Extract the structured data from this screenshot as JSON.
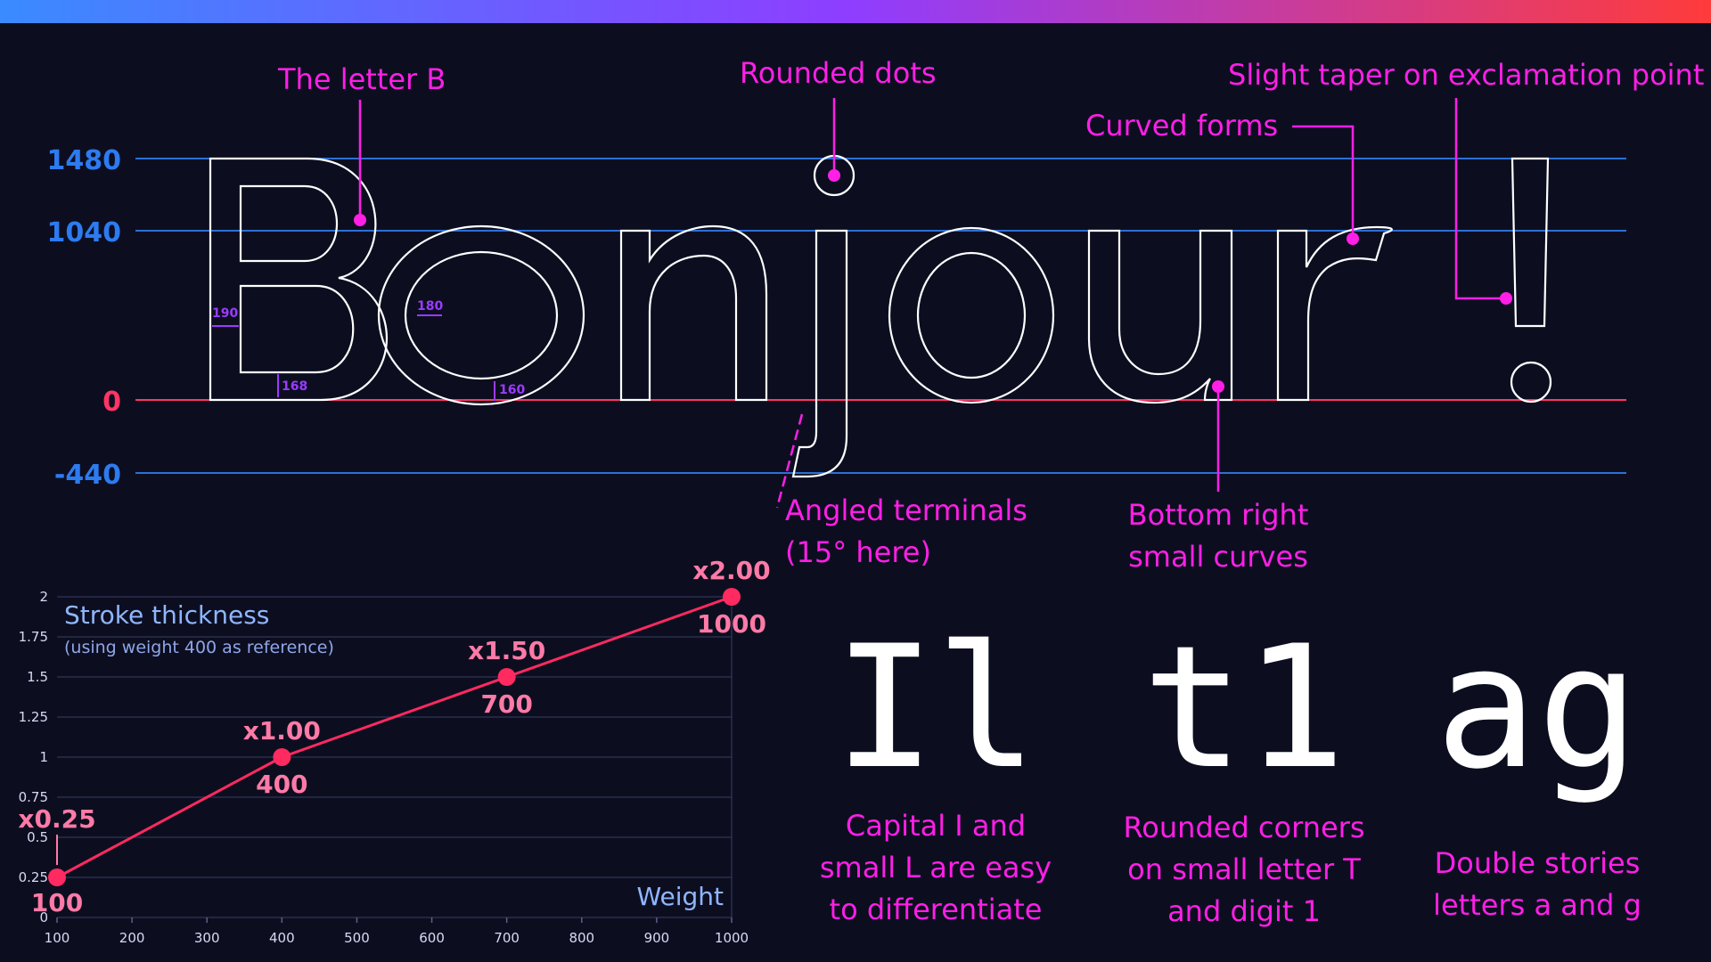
{
  "colors": {
    "background": "#0c0e20",
    "accent_magenta": "#ff1fe6",
    "guide_blue": "#2d6fd6",
    "baseline_red": "#ff3566",
    "chart_line": "#ff2a5f",
    "measure_purple": "#9b3bff",
    "top_gradient": [
      "#3a8bff",
      "#8f3dff",
      "#ff3b3b"
    ]
  },
  "specimen": {
    "word": "Bonjour",
    "exclamation": "!",
    "metrics": [
      {
        "label": "1480",
        "color": "#2d7bf0"
      },
      {
        "label": "1040",
        "color": "#2d7bf0"
      },
      {
        "label": "0",
        "color": "#ff3566"
      },
      {
        "label": "-440",
        "color": "#2d7bf0"
      }
    ],
    "measurements": [
      "190",
      "180",
      "168",
      "160"
    ]
  },
  "annotations": {
    "letter_b": "The letter B",
    "rounded_dots": "Rounded dots",
    "taper": "Slight taper on exclamation point",
    "curved_forms": "Curved forms",
    "angled_terminals": [
      "Angled terminals",
      "(15° here)"
    ],
    "bottom_right": [
      "Bottom right",
      "small curves"
    ]
  },
  "chart_data": {
    "type": "line",
    "title": "Stroke thickness",
    "subtitle": "(using weight 400 as reference)",
    "xlabel": "Weight",
    "ylabel": "",
    "xlim": [
      100,
      1000
    ],
    "ylim": [
      0,
      2
    ],
    "grid": true,
    "x_ticks": [
      "100",
      "200",
      "300",
      "400",
      "500",
      "600",
      "700",
      "800",
      "900",
      "1000"
    ],
    "y_ticks": [
      "0",
      "0.25",
      "0.5",
      "0.75",
      "1",
      "1.25",
      "1.5",
      "1.75",
      "2"
    ],
    "x": [
      100,
      400,
      700,
      1000
    ],
    "y": [
      0.25,
      1.0,
      1.5,
      2.0
    ],
    "point_labels": [
      "x0.25",
      "x1.00",
      "x1.50",
      "x2.00"
    ],
    "weight_labels": [
      "100",
      "400",
      "700",
      "1000"
    ]
  },
  "samples": [
    {
      "glyphs": "Il",
      "caption": [
        "Capital I and",
        "small L are easy",
        "to differentiate"
      ]
    },
    {
      "glyphs": "t1",
      "caption": [
        "Rounded corners",
        "on small letter T",
        "and digit 1"
      ]
    },
    {
      "glyphs": "ag",
      "caption": [
        "Double stories",
        "letters a and g"
      ]
    }
  ]
}
